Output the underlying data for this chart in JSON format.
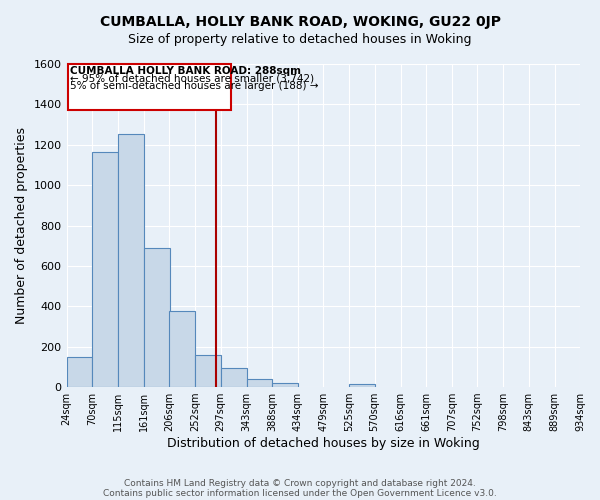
{
  "title": "CUMBALLA, HOLLY BANK ROAD, WOKING, GU22 0JP",
  "subtitle": "Size of property relative to detached houses in Woking",
  "xlabel": "Distribution of detached houses by size in Woking",
  "ylabel": "Number of detached properties",
  "footer1": "Contains HM Land Registry data © Crown copyright and database right 2024.",
  "footer2": "Contains public sector information licensed under the Open Government Licence v3.0.",
  "bin_edges": [
    24,
    70,
    115,
    161,
    206,
    252,
    297,
    343,
    388,
    434,
    479,
    525,
    570,
    616,
    661,
    707,
    752,
    798,
    843,
    889,
    934
  ],
  "bin_labels": [
    "24sqm",
    "70sqm",
    "115sqm",
    "161sqm",
    "206sqm",
    "252sqm",
    "297sqm",
    "343sqm",
    "388sqm",
    "434sqm",
    "479sqm",
    "525sqm",
    "570sqm",
    "616sqm",
    "661sqm",
    "707sqm",
    "752sqm",
    "798sqm",
    "843sqm",
    "889sqm",
    "934sqm"
  ],
  "bar_heights": [
    150,
    1165,
    1255,
    690,
    375,
    160,
    95,
    40,
    20,
    0,
    0,
    15,
    0,
    0,
    0,
    0,
    0,
    0,
    0,
    0
  ],
  "bar_color": "#c8d8e8",
  "bar_edge_color": "#5588bb",
  "vline_x": 288,
  "vline_color": "#aa0000",
  "ylim": [
    0,
    1600
  ],
  "yticks": [
    0,
    200,
    400,
    600,
    800,
    1000,
    1200,
    1400,
    1600
  ],
  "background_color": "#e8f0f8",
  "grid_color": "#ffffff",
  "legend_title": "CUMBALLA HOLLY BANK ROAD: 288sqm",
  "legend_line1": "← 95% of detached houses are smaller (3,742)",
  "legend_line2": "5% of semi-detached houses are larger (188) →",
  "legend_box_color": "#cc0000",
  "legend_box_fill": "#ffffff",
  "title_fontsize": 10,
  "subtitle_fontsize": 9
}
